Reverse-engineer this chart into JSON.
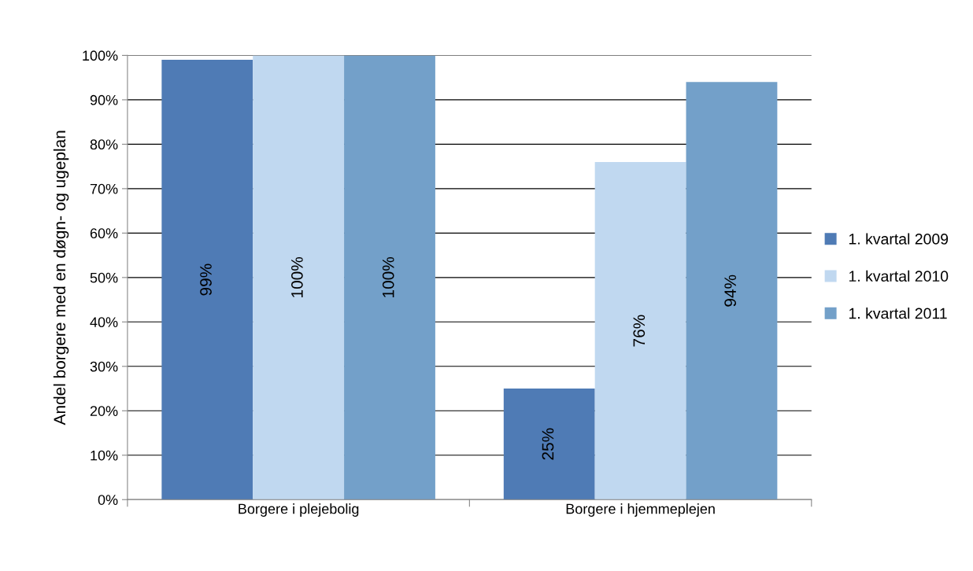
{
  "chart_data": {
    "type": "bar",
    "ylabel": "Andel borgere med en døgn- og ugeplan",
    "categories": [
      "Borgere i plejebolig",
      "Borgere i hjemmeplejen"
    ],
    "series": [
      {
        "name": "1. kvartal 2009",
        "color": "#4f7bb5",
        "values": [
          99,
          25
        ],
        "value_labels": [
          "99%",
          "25%"
        ]
      },
      {
        "name": "1. kvartal 2010",
        "color": "#c0d8f0",
        "values": [
          100,
          76
        ],
        "value_labels": [
          "100%",
          "76%"
        ]
      },
      {
        "name": "1. kvartal 2011",
        "color": "#73a0c9",
        "values": [
          100,
          94
        ],
        "value_labels": [
          "100%",
          "94%"
        ]
      }
    ],
    "ylim": [
      0,
      100
    ],
    "yticks": [
      {
        "value": 0,
        "label": "0%"
      },
      {
        "value": 10,
        "label": "10%"
      },
      {
        "value": 20,
        "label": "20%"
      },
      {
        "value": 30,
        "label": "30%"
      },
      {
        "value": 40,
        "label": "40%"
      },
      {
        "value": 50,
        "label": "50%"
      },
      {
        "value": 60,
        "label": "60%"
      },
      {
        "value": 70,
        "label": "70%"
      },
      {
        "value": 80,
        "label": "80%"
      },
      {
        "value": 90,
        "label": "90%"
      },
      {
        "value": 100,
        "label": "100%"
      }
    ],
    "grid": "y",
    "legend": "right"
  }
}
